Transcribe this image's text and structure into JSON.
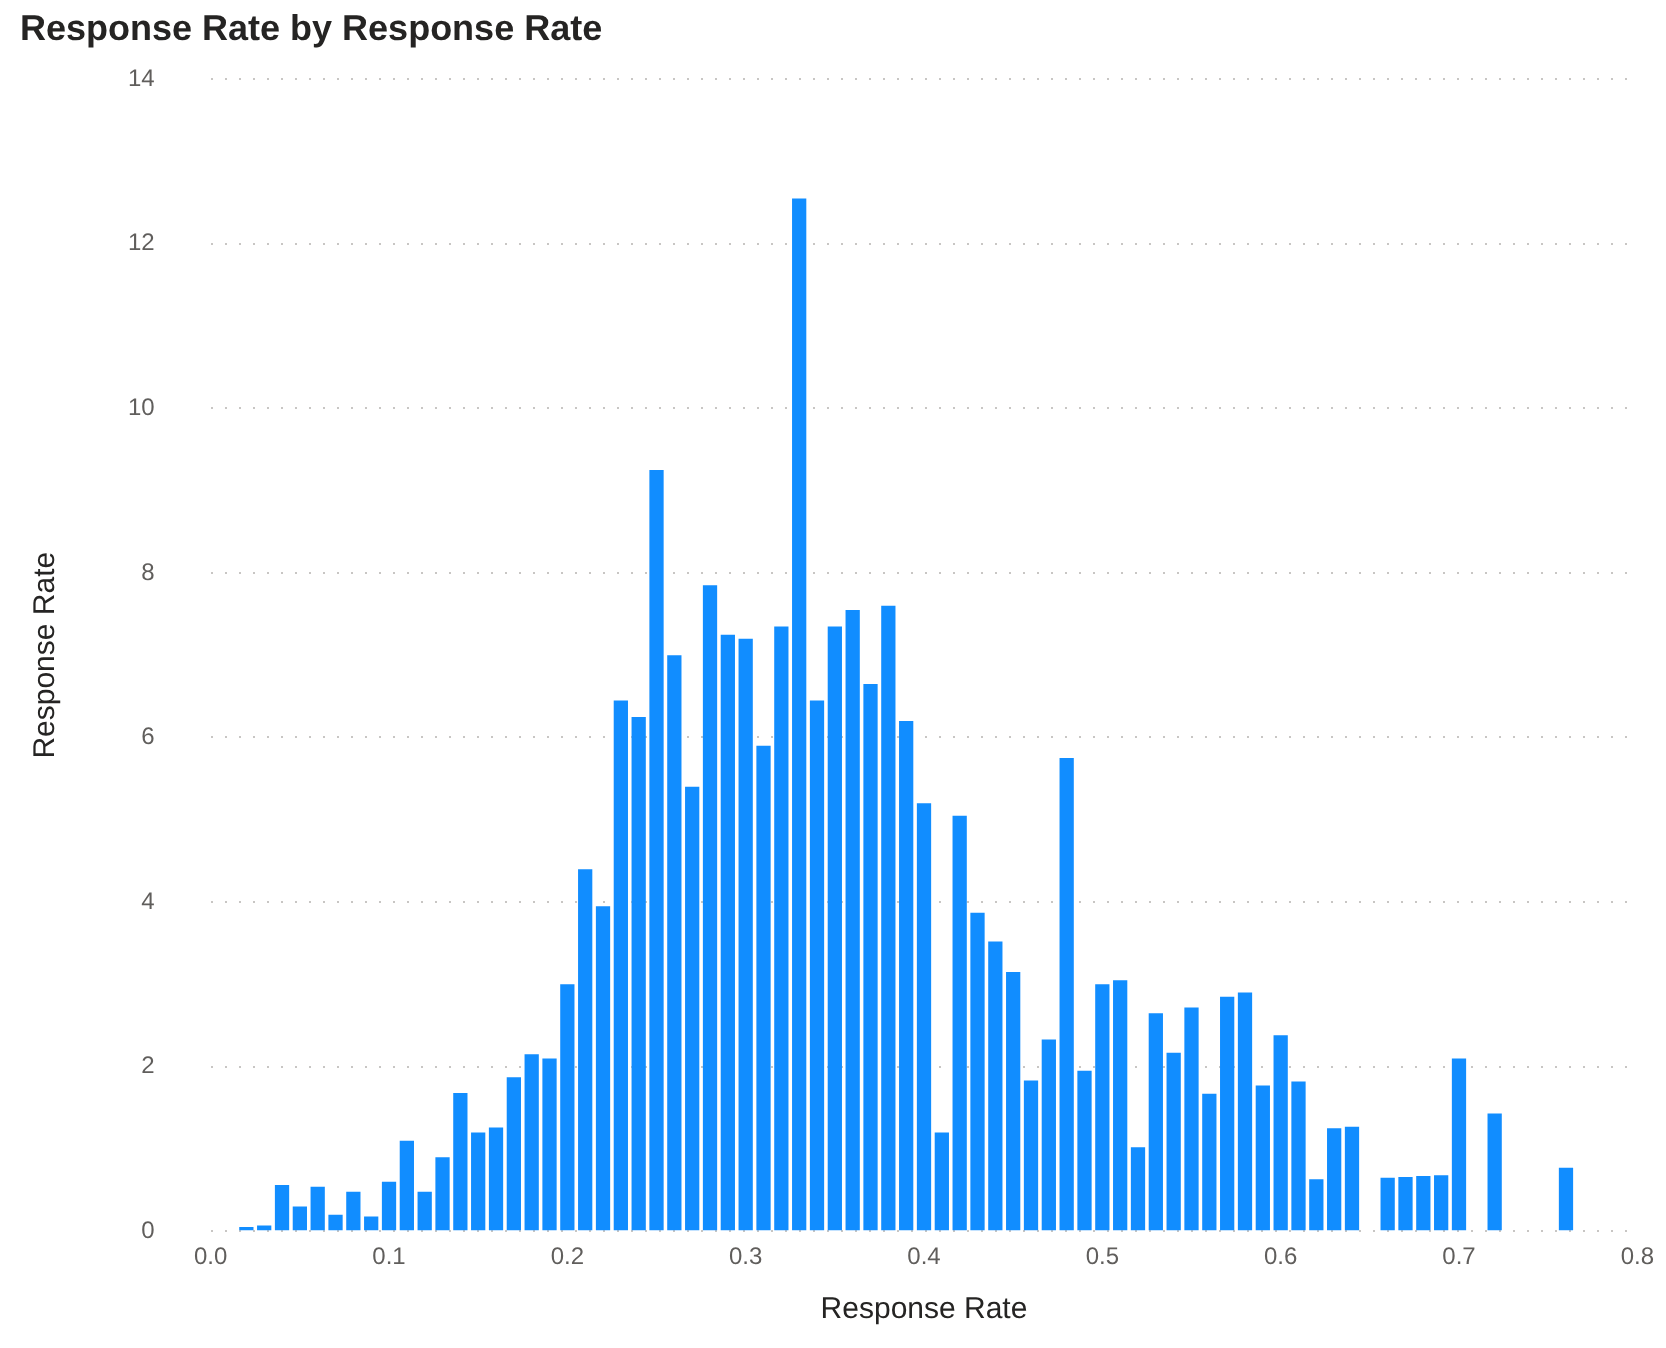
{
  "chart_data": {
    "type": "bar",
    "title": "Response Rate by Response Rate",
    "xlabel": "Response Rate",
    "ylabel": "Response Rate",
    "color": "#118dff",
    "x": [
      0.02,
      0.03,
      0.04,
      0.05,
      0.06,
      0.07,
      0.08,
      0.09,
      0.1,
      0.11,
      0.12,
      0.13,
      0.14,
      0.15,
      0.16,
      0.17,
      0.18,
      0.19,
      0.2,
      0.21,
      0.22,
      0.23,
      0.24,
      0.25,
      0.26,
      0.27,
      0.28,
      0.29,
      0.3,
      0.31,
      0.32,
      0.33,
      0.34,
      0.35,
      0.36,
      0.37,
      0.38,
      0.39,
      0.4,
      0.41,
      0.42,
      0.43,
      0.44,
      0.45,
      0.46,
      0.47,
      0.48,
      0.49,
      0.5,
      0.51,
      0.52,
      0.53,
      0.54,
      0.55,
      0.56,
      0.57,
      0.58,
      0.59,
      0.6,
      0.61,
      0.62,
      0.63,
      0.64,
      0.65,
      0.66,
      0.67,
      0.68,
      0.69,
      0.7,
      0.71,
      0.72,
      0.73,
      0.74,
      0.75,
      0.76
    ],
    "values": [
      0.05,
      0.07,
      0.56,
      0.3,
      0.54,
      0.2,
      0.48,
      0.18,
      0.6,
      1.1,
      0.48,
      0.9,
      1.68,
      1.2,
      1.26,
      1.87,
      2.15,
      2.1,
      3.0,
      4.4,
      3.95,
      6.45,
      6.25,
      9.25,
      7.0,
      5.4,
      7.85,
      7.25,
      7.2,
      5.9,
      7.35,
      12.55,
      6.45,
      7.35,
      7.55,
      6.65,
      7.6,
      6.2,
      5.2,
      1.2,
      5.05,
      3.87,
      3.52,
      3.15,
      1.83,
      2.33,
      5.75,
      1.95,
      3.0,
      3.05,
      1.02,
      2.65,
      2.17,
      2.72,
      1.67,
      2.85,
      2.9,
      1.77,
      2.38,
      1.82,
      0.63,
      1.25,
      1.27,
      null,
      0.65,
      0.66,
      0.67,
      0.68,
      2.1,
      null,
      1.43,
      null,
      null,
      null,
      0.77
    ],
    "xlim": [
      0,
      0.8
    ],
    "xticks": [
      {
        "value": 0,
        "label": "0.0"
      },
      0.1,
      0.2,
      0.3,
      0.4,
      0.5,
      0.6,
      0.7,
      0.8
    ],
    "ylim": [
      0,
      14
    ],
    "yticks": [
      0,
      2,
      4,
      6,
      8,
      10,
      12,
      14
    ],
    "grid": "y",
    "legend": false
  }
}
